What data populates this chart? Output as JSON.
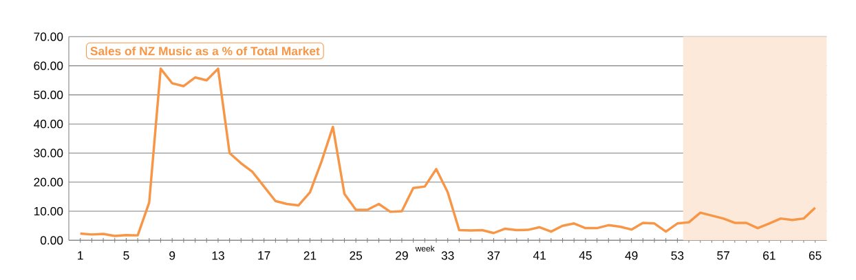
{
  "chart_data": {
    "type": "line",
    "title": "Sales of NZ Music as a % of Total Market",
    "xlabel": "week",
    "x": [
      1,
      2,
      3,
      4,
      5,
      6,
      7,
      8,
      9,
      10,
      11,
      12,
      13,
      14,
      15,
      16,
      17,
      18,
      19,
      20,
      21,
      22,
      23,
      24,
      25,
      26,
      27,
      28,
      29,
      30,
      31,
      32,
      33,
      34,
      35,
      36,
      37,
      38,
      39,
      40,
      41,
      42,
      43,
      44,
      45,
      46,
      47,
      48,
      49,
      50,
      51,
      52,
      53,
      54,
      55,
      56,
      57,
      58,
      59,
      60,
      61,
      62,
      63,
      64,
      65
    ],
    "series": [
      {
        "color": "#f79646",
        "values": [
          2.3,
          2.0,
          2.2,
          1.5,
          1.8,
          1.7,
          13,
          59,
          54,
          53,
          56,
          55,
          59,
          30,
          26.5,
          23.5,
          18.5,
          13.5,
          12.5,
          12,
          16.5,
          27,
          39,
          16,
          10.5,
          10.5,
          12.5,
          9.8,
          10,
          18,
          18.5,
          24.5,
          16.5,
          3.5,
          3.4,
          3.5,
          2.5,
          4,
          3.5,
          3.6,
          4.5,
          3,
          5,
          5.8,
          4.2,
          4.2,
          5.2,
          4.7,
          3.7,
          6,
          5.8,
          3,
          5.8,
          6.2,
          9.5,
          8.5,
          7.5,
          6,
          6,
          4.2,
          5.8,
          7.5,
          7,
          7.5,
          11.2
        ]
      }
    ],
    "xlim": [
      0,
      66
    ],
    "xticks": [
      1,
      {
        "value": 2,
        "label": null
      },
      {
        "value": 3,
        "label": null
      },
      {
        "value": 4,
        "label": null
      },
      5,
      {
        "value": 6,
        "label": null
      },
      {
        "value": 7,
        "label": null
      },
      {
        "value": 8,
        "label": null
      },
      9,
      {
        "value": 10,
        "label": null
      },
      {
        "value": 11,
        "label": null
      },
      {
        "value": 12,
        "label": null
      },
      13,
      {
        "value": 14,
        "label": null
      },
      {
        "value": 15,
        "label": null
      },
      {
        "value": 16,
        "label": null
      },
      17,
      {
        "value": 18,
        "label": null
      },
      {
        "value": 19,
        "label": null
      },
      {
        "value": 20,
        "label": null
      },
      21,
      {
        "value": 22,
        "label": null
      },
      {
        "value": 23,
        "label": null
      },
      {
        "value": 24,
        "label": null
      },
      25,
      {
        "value": 26,
        "label": null
      },
      {
        "value": 27,
        "label": null
      },
      {
        "value": 28,
        "label": null
      },
      29,
      {
        "value": 30,
        "label": null
      },
      {
        "value": 31,
        "label": null
      },
      {
        "value": 32,
        "label": null
      },
      33,
      {
        "value": 34,
        "label": null
      },
      {
        "value": 35,
        "label": null
      },
      {
        "value": 36,
        "label": null
      },
      37,
      {
        "value": 38,
        "label": null
      },
      {
        "value": 39,
        "label": null
      },
      {
        "value": 40,
        "label": null
      },
      41,
      {
        "value": 42,
        "label": null
      },
      {
        "value": 43,
        "label": null
      },
      {
        "value": 44,
        "label": null
      },
      45,
      {
        "value": 46,
        "label": null
      },
      {
        "value": 47,
        "label": null
      },
      {
        "value": 48,
        "label": null
      },
      49,
      {
        "value": 50,
        "label": null
      },
      {
        "value": 51,
        "label": null
      },
      {
        "value": 52,
        "label": null
      },
      53,
      {
        "value": 54,
        "label": null
      },
      {
        "value": 55,
        "label": null
      },
      {
        "value": 56,
        "label": null
      },
      57,
      {
        "value": 58,
        "label": null
      },
      {
        "value": 59,
        "label": null
      },
      {
        "value": 60,
        "label": null
      },
      61,
      {
        "value": 62,
        "label": null
      },
      {
        "value": 63,
        "label": null
      },
      {
        "value": 64,
        "label": null
      },
      65
    ],
    "ylim": [
      0,
      70
    ],
    "yticks": [
      {
        "value": 0,
        "label": "0.00"
      },
      {
        "value": 10,
        "label": "10.00"
      },
      {
        "value": 20,
        "label": "20.00"
      },
      {
        "value": 30,
        "label": "30.00"
      },
      {
        "value": 40,
        "label": "40.00"
      },
      {
        "value": 50,
        "label": "50.00"
      },
      {
        "value": 60,
        "label": "60.00"
      },
      {
        "value": 70,
        "label": "70.00"
      }
    ],
    "grid": "y",
    "marker": "none",
    "line_style": "solid",
    "bands": [
      {
        "axis": "x",
        "from": 53.5,
        "to": 66,
        "color": "#fde9d9"
      }
    ]
  }
}
